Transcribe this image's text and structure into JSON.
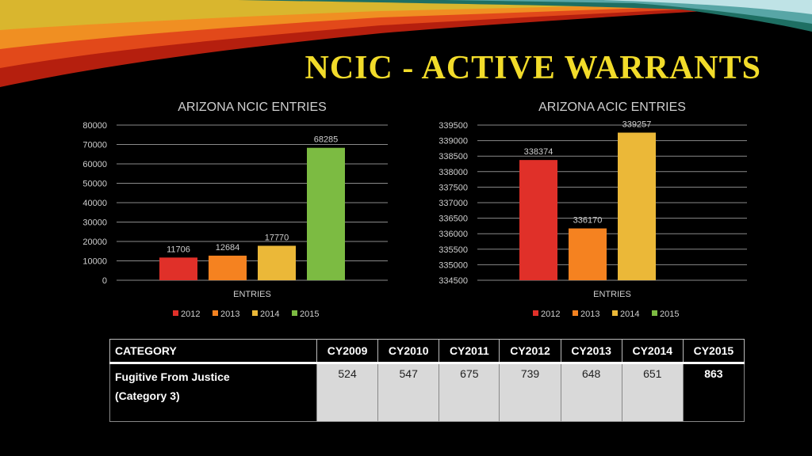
{
  "page": {
    "title": "NCIC - ACTIVE WARRANTS"
  },
  "chart_data": [
    {
      "id": "ncic",
      "type": "bar",
      "title": "ARIZONA NCIC ENTRIES",
      "xlabel": "ENTRIES",
      "categories": [
        "2012",
        "2013",
        "2014",
        "2015"
      ],
      "values": [
        11706,
        12684,
        17770,
        68285
      ],
      "colors": [
        "#e03029",
        "#f58220",
        "#ebb838",
        "#7cbb42"
      ],
      "ylim": [
        0,
        80000
      ],
      "ytick_step": 10000,
      "grid": true,
      "legend": "bottom"
    },
    {
      "id": "acic",
      "type": "bar",
      "title": "ARIZONA ACIC ENTRIES",
      "xlabel": "ENTRIES",
      "categories": [
        "2012",
        "2013",
        "2014",
        "2015"
      ],
      "values": [
        338374,
        336170,
        339257,
        null
      ],
      "colors": [
        "#e03029",
        "#f58220",
        "#ebb838",
        "#7cbb42"
      ],
      "ylim": [
        334500,
        339500
      ],
      "ytick_step": 500,
      "grid": true,
      "legend": "bottom"
    }
  ],
  "table": {
    "headers": [
      "CATEGORY",
      "CY2009",
      "CY2010",
      "CY2011",
      "CY2012",
      "CY2013",
      "CY2014",
      "CY2015"
    ],
    "rows": [
      {
        "label_lines": [
          "Fugitive From Justice",
          "(Category 3)"
        ],
        "values": [
          "524",
          "547",
          "675",
          "739",
          "648",
          "651",
          "863"
        ]
      }
    ]
  }
}
